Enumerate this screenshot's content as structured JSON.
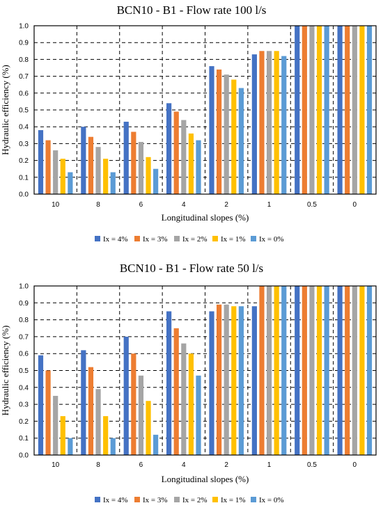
{
  "chart_data": [
    {
      "type": "bar",
      "title": "BCN10 - B1 - Flow rate 100 l/s",
      "xlabel": "Longitudinal slopes (%)",
      "ylabel": "Hydraulic efficiency  (%)",
      "ylim": [
        0,
        1.0
      ],
      "yticks": [
        "0.0",
        "0.1",
        "0.2",
        "0.3",
        "0.4",
        "0.5",
        "0.6",
        "0.7",
        "0.8",
        "0.9",
        "1.0"
      ],
      "grid": true,
      "legend_position": "bottom",
      "categories": [
        "10",
        "8",
        "6",
        "4",
        "2",
        "1",
        "0.5",
        "0"
      ],
      "series": [
        {
          "name": "Ix = 4%",
          "color": "#4472c4",
          "values": [
            0.38,
            0.4,
            0.43,
            0.54,
            0.76,
            0.83,
            1.0,
            1.0
          ]
        },
        {
          "name": "Ix = 3%",
          "color": "#ed7d31",
          "values": [
            0.32,
            0.34,
            0.37,
            0.49,
            0.74,
            0.85,
            1.0,
            1.0
          ]
        },
        {
          "name": "Ix = 2%",
          "color": "#a5a5a5",
          "values": [
            0.26,
            0.28,
            0.31,
            0.44,
            0.71,
            0.85,
            1.0,
            1.0
          ]
        },
        {
          "name": "Ix = 1%",
          "color": "#ffc000",
          "values": [
            0.21,
            0.21,
            0.22,
            0.36,
            0.68,
            0.85,
            1.0,
            1.0
          ]
        },
        {
          "name": "Ix = 0%",
          "color": "#5b9bd5",
          "values": [
            0.13,
            0.13,
            0.15,
            0.32,
            0.63,
            0.82,
            1.0,
            1.0
          ]
        }
      ]
    },
    {
      "type": "bar",
      "title": "BCN10 - B1 - Flow rate 50 l/s",
      "xlabel": "Longitudinal slopes (%)",
      "ylabel": "Hydraulic efficiency  (%)",
      "ylim": [
        0,
        1.0
      ],
      "yticks": [
        "0.0",
        "0.1",
        "0.2",
        "0.3",
        "0.4",
        "0.5",
        "0.6",
        "0.7",
        "0.8",
        "0.9",
        "1.0"
      ],
      "grid": true,
      "legend_position": "bottom",
      "categories": [
        "10",
        "8",
        "6",
        "4",
        "2",
        "1",
        "0.5",
        "0"
      ],
      "series": [
        {
          "name": "Ix = 4%",
          "color": "#4472c4",
          "values": [
            0.59,
            0.62,
            0.7,
            0.85,
            0.85,
            0.88,
            1.0,
            1.0
          ]
        },
        {
          "name": "Ix = 3%",
          "color": "#ed7d31",
          "values": [
            0.5,
            0.52,
            0.6,
            0.75,
            0.89,
            1.0,
            1.0,
            1.0
          ]
        },
        {
          "name": "Ix = 2%",
          "color": "#a5a5a5",
          "values": [
            0.35,
            0.39,
            0.47,
            0.66,
            0.89,
            1.0,
            1.0,
            1.0
          ]
        },
        {
          "name": "Ix = 1%",
          "color": "#ffc000",
          "values": [
            0.23,
            0.23,
            0.32,
            0.6,
            0.88,
            1.0,
            1.0,
            1.0
          ]
        },
        {
          "name": "Ix = 0%",
          "color": "#5b9bd5",
          "values": [
            0.1,
            0.1,
            0.12,
            0.47,
            0.88,
            1.0,
            1.0,
            1.0
          ]
        }
      ]
    }
  ]
}
